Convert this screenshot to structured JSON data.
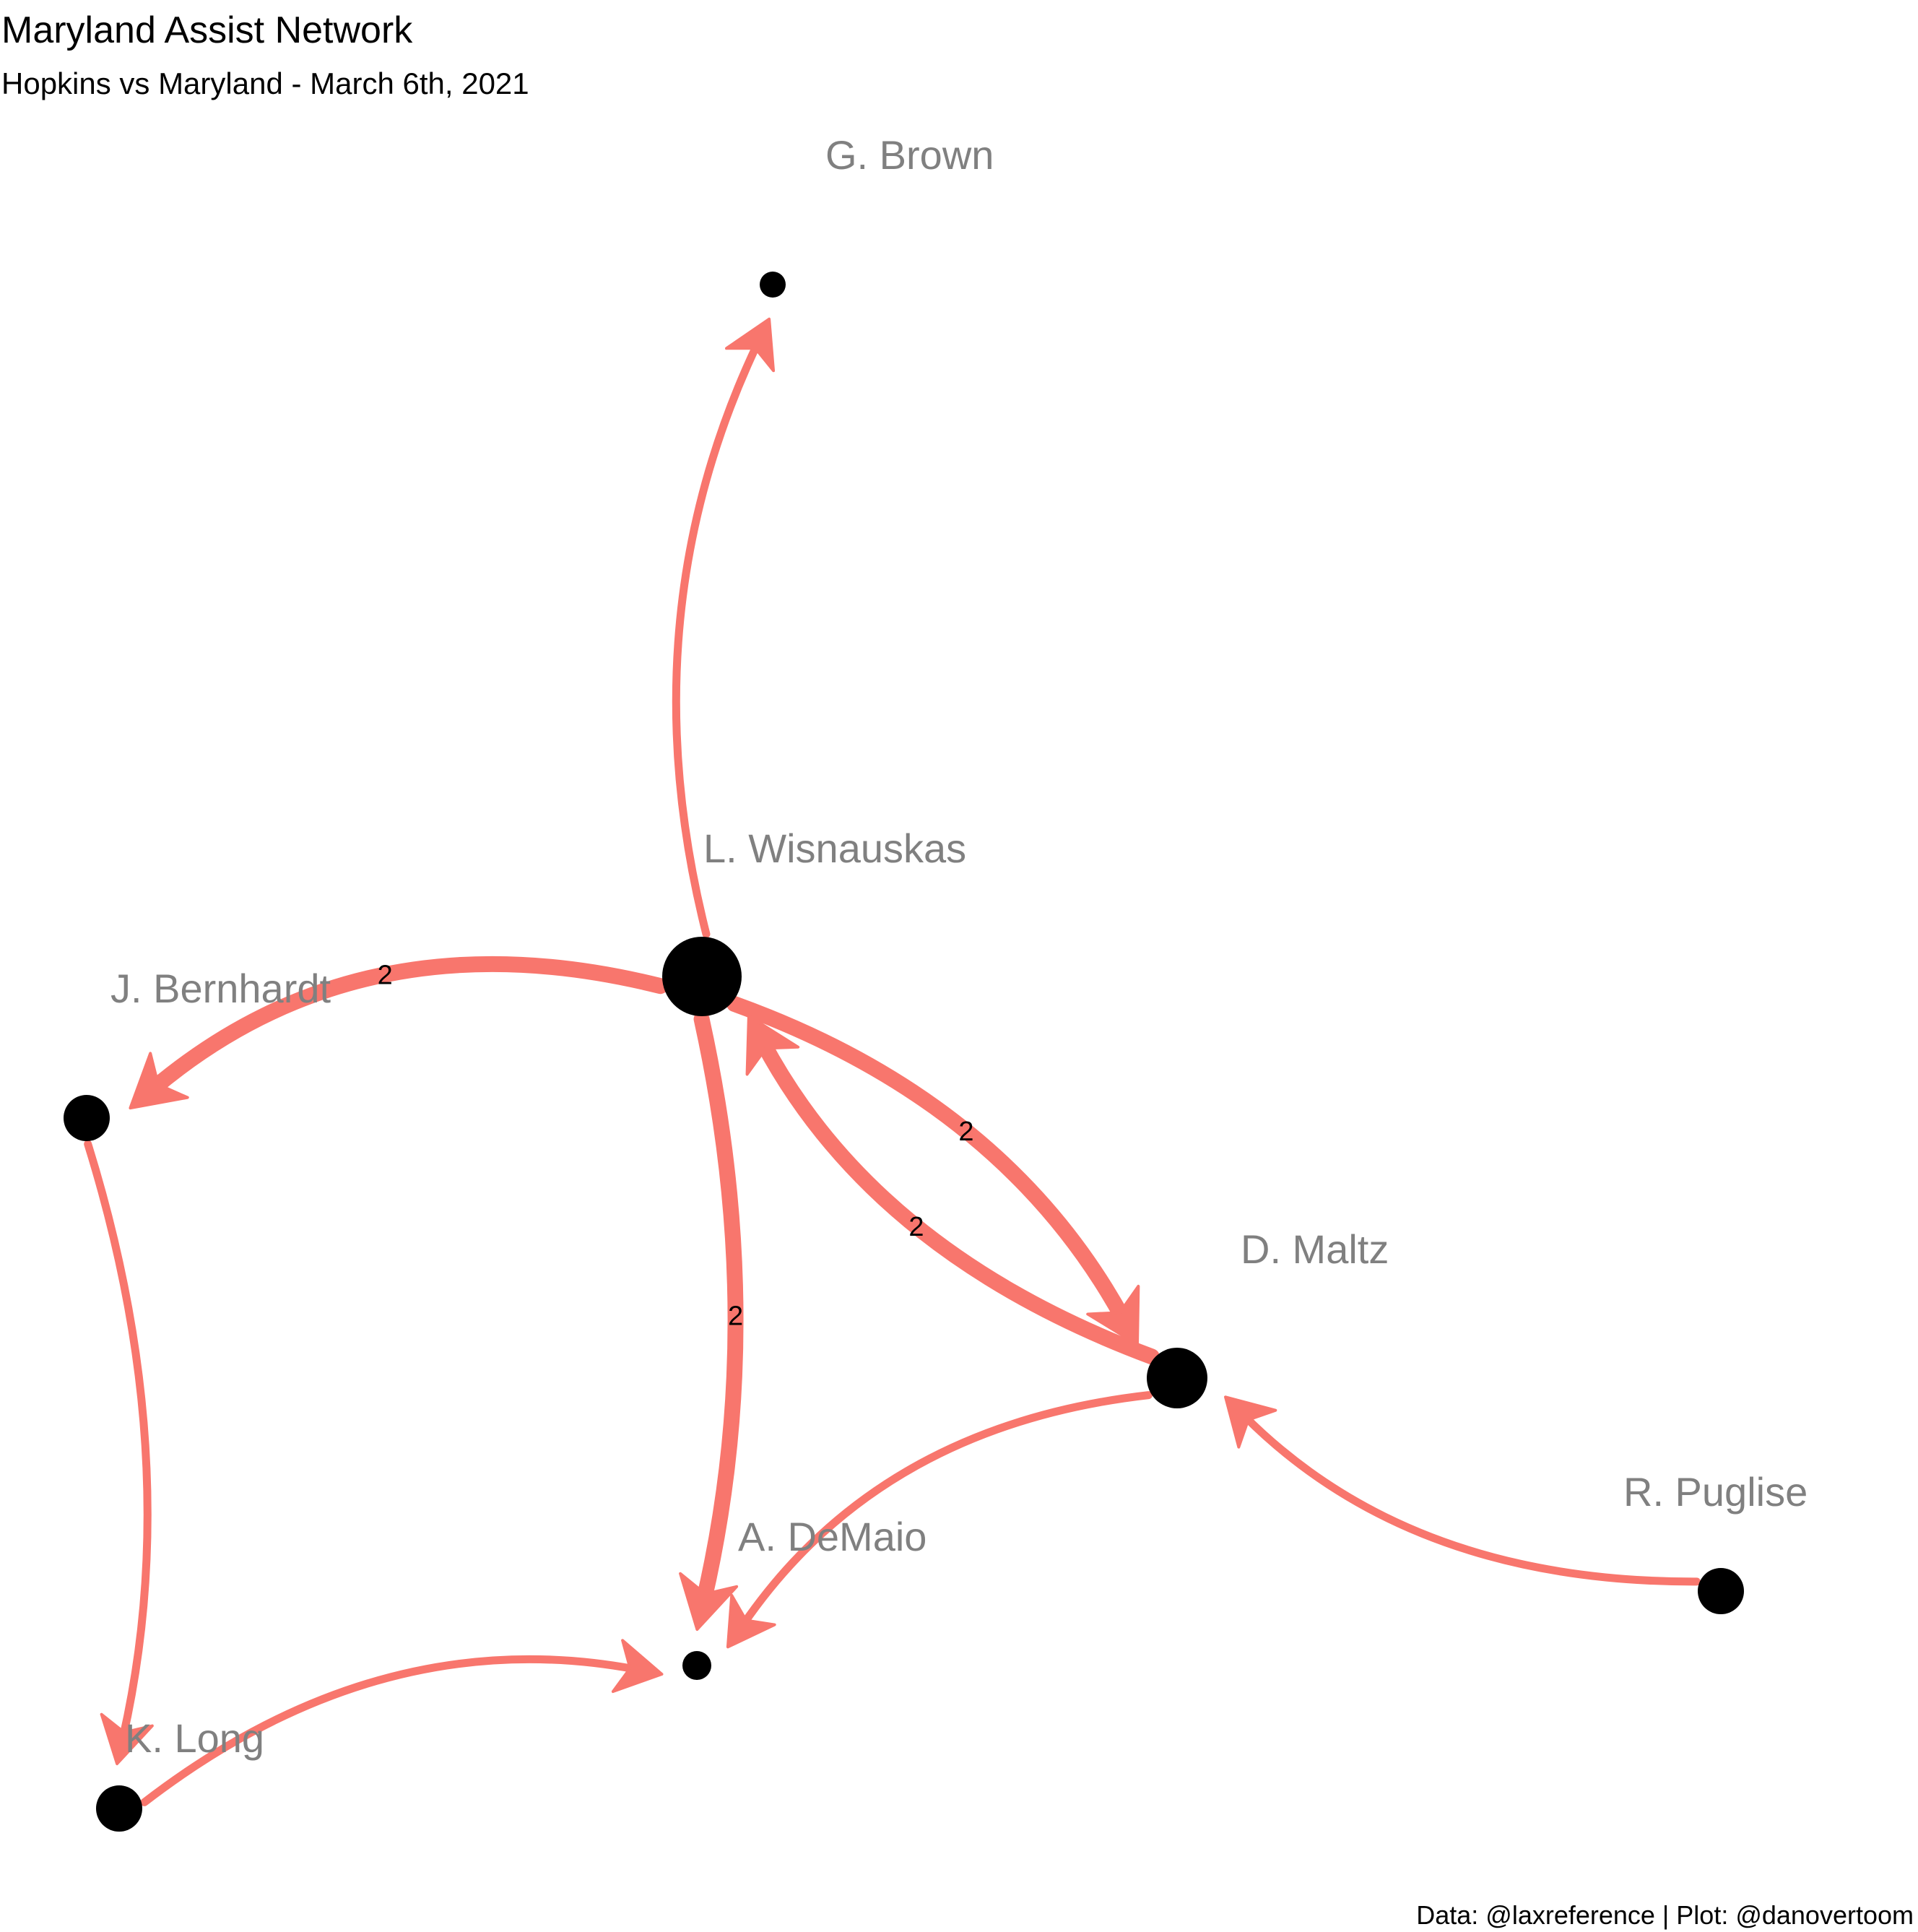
{
  "title": "Maryland Assist Network",
  "subtitle": "Hopkins vs Maryland - March 6th, 2021",
  "caption": "Data: @laxreference | Plot: @danovertoom",
  "edge_color": "#F8766D",
  "node_color": "#000000",
  "label_color": "#808080",
  "nodes": [
    {
      "id": "brown",
      "label": "G. Brown"
    },
    {
      "id": "wisnauskas",
      "label": "L. Wisnauskas"
    },
    {
      "id": "bernhardt",
      "label": "J. Bernhardt"
    },
    {
      "id": "maltz",
      "label": "D. Maltz"
    },
    {
      "id": "demaio",
      "label": "A. DeMaio"
    },
    {
      "id": "puglise",
      "label": "R. Puglise"
    },
    {
      "id": "long",
      "label": "K. Long"
    }
  ],
  "edges": [
    {
      "from": "wisnauskas",
      "to": "brown",
      "weight": 1,
      "label": ""
    },
    {
      "from": "wisnauskas",
      "to": "bernhardt",
      "weight": 2,
      "label": "2"
    },
    {
      "from": "wisnauskas",
      "to": "maltz",
      "weight": 2,
      "label": "2"
    },
    {
      "from": "maltz",
      "to": "wisnauskas",
      "weight": 2,
      "label": "2"
    },
    {
      "from": "wisnauskas",
      "to": "demaio",
      "weight": 2,
      "label": "2"
    },
    {
      "from": "maltz",
      "to": "demaio",
      "weight": 1,
      "label": ""
    },
    {
      "from": "puglise",
      "to": "maltz",
      "weight": 1,
      "label": ""
    },
    {
      "from": "bernhardt",
      "to": "long",
      "weight": 1,
      "label": ""
    },
    {
      "from": "long",
      "to": "demaio",
      "weight": 1,
      "label": ""
    }
  ]
}
